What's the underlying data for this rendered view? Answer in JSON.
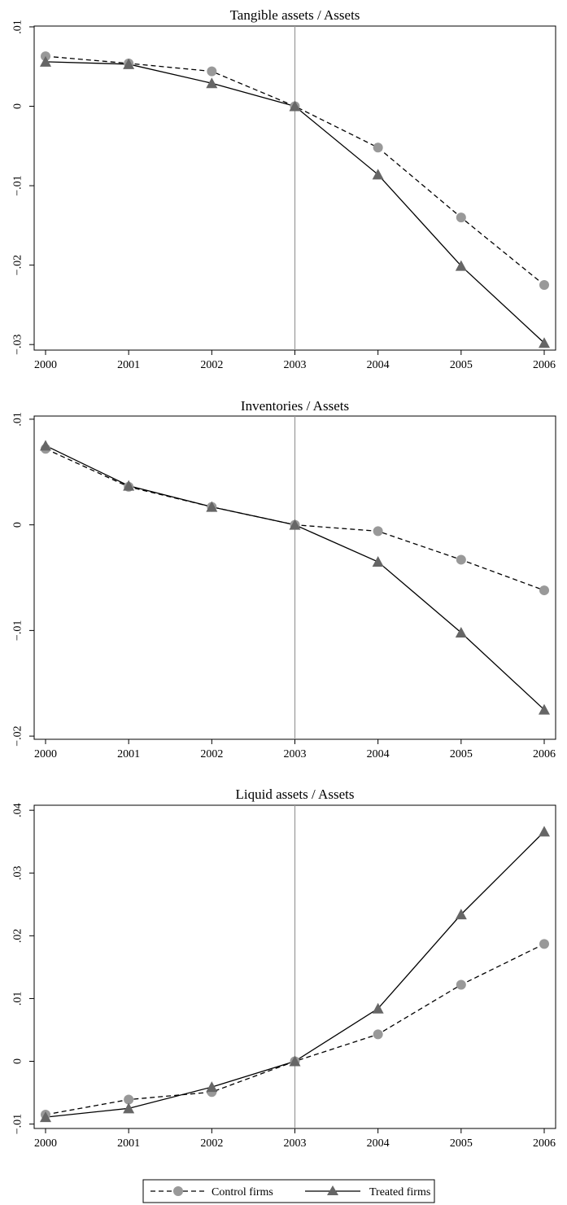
{
  "chart_data": [
    {
      "type": "line",
      "title": "Tangible assets / Assets",
      "xlabel": "",
      "ylabel": "",
      "x": [
        2000,
        2001,
        2002,
        2003,
        2004,
        2005,
        2006
      ],
      "xticks": [
        "2000",
        "2001",
        "2002",
        "2003",
        "2004",
        "2005",
        "2006"
      ],
      "yticks": [
        {
          "value": 0.01,
          "label": ".01"
        },
        {
          "value": 0,
          "label": "0"
        },
        {
          "value": -0.01,
          "label": "−.01"
        },
        {
          "value": -0.02,
          "label": "−.02"
        },
        {
          "value": -0.03,
          "label": "−.03"
        }
      ],
      "ylim": [
        -0.0307,
        0.0101
      ],
      "reference_line_x": 2003,
      "grid": false,
      "series": [
        {
          "name": "Control firms",
          "values": [
            0.0063,
            0.0054,
            0.0044,
            0.0,
            -0.0052,
            -0.014,
            -0.0225
          ]
        },
        {
          "name": "Treated firms",
          "values": [
            0.0056,
            0.0053,
            0.0029,
            0.0,
            -0.0086,
            -0.0201,
            -0.0298
          ]
        }
      ]
    },
    {
      "type": "line",
      "title": "Inventories / Assets",
      "xlabel": "",
      "ylabel": "",
      "x": [
        2000,
        2001,
        2002,
        2003,
        2004,
        2005,
        2006
      ],
      "xticks": [
        "2000",
        "2001",
        "2002",
        "2003",
        "2004",
        "2005",
        "2006"
      ],
      "yticks": [
        {
          "value": 0.01,
          "label": ".01"
        },
        {
          "value": 0,
          "label": "0"
        },
        {
          "value": -0.01,
          "label": "−.01"
        },
        {
          "value": -0.02,
          "label": "−.02"
        }
      ],
      "ylim": [
        -0.0203,
        0.0103
      ],
      "reference_line_x": 2003,
      "grid": false,
      "series": [
        {
          "name": "Control firms",
          "values": [
            0.0072,
            0.0036,
            0.0017,
            0.0,
            -0.0006,
            -0.0033,
            -0.0062
          ]
        },
        {
          "name": "Treated firms",
          "values": [
            0.0075,
            0.0037,
            0.0017,
            0.0,
            -0.0035,
            -0.0102,
            -0.0175
          ]
        }
      ]
    },
    {
      "type": "line",
      "title": "Liquid assets / Assets",
      "xlabel": "",
      "ylabel": "",
      "x": [
        2000,
        2001,
        2002,
        2003,
        2004,
        2005,
        2006
      ],
      "xticks": [
        "2000",
        "2001",
        "2002",
        "2003",
        "2004",
        "2005",
        "2006"
      ],
      "yticks": [
        {
          "value": 0.04,
          "label": ".04"
        },
        {
          "value": 0.03,
          "label": ".03"
        },
        {
          "value": 0.02,
          "label": ".02"
        },
        {
          "value": 0.01,
          "label": ".01"
        },
        {
          "value": 0,
          "label": "0"
        },
        {
          "value": -0.01,
          "label": "−.01"
        }
      ],
      "ylim": [
        -0.0107,
        0.0408
      ],
      "reference_line_x": 2003,
      "grid": false,
      "series": [
        {
          "name": "Control firms",
          "values": [
            -0.0085,
            -0.0061,
            -0.0049,
            0.0,
            0.0043,
            0.0122,
            0.0187
          ]
        },
        {
          "name": "Treated firms",
          "values": [
            -0.0089,
            -0.0075,
            -0.0041,
            0.0,
            0.0084,
            0.0234,
            0.0366
          ]
        }
      ]
    }
  ],
  "legend": {
    "placement": "bottom-center",
    "items": [
      {
        "label": "Control firms",
        "line": "dashed",
        "marker": "circle",
        "color": "#999999"
      },
      {
        "label": "Treated firms",
        "line": "solid",
        "marker": "triangle",
        "color": "#666666"
      }
    ]
  },
  "colors": {
    "control_marker": "#999999",
    "treated_marker": "#666666",
    "reference_line": "#999999",
    "axis": "#000000",
    "line": "#000000"
  }
}
